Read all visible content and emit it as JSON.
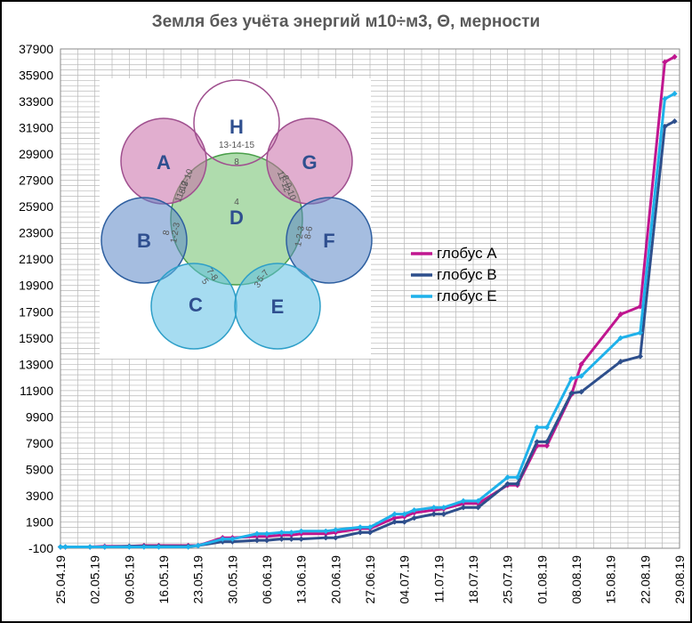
{
  "chart_data": {
    "type": "line",
    "title": "Земля без учёта энергий м10÷м3, Θ, мерности",
    "xlabel": "",
    "ylabel": "",
    "ylim": [
      -100,
      37900
    ],
    "yticks": [
      "37900",
      "35900",
      "33900",
      "31900",
      "29900",
      "27900",
      "25900",
      "23900",
      "21900",
      "19900",
      "17900",
      "15900",
      "13900",
      "11900",
      "9900",
      "7900",
      "5900",
      "3900",
      "1900",
      "-100"
    ],
    "xticks": [
      "25.04.19",
      "02.05.19",
      "09.05.19",
      "16.05.19",
      "23.05.19",
      "30.05.19",
      "06.06.19",
      "13.06.19",
      "20.06.19",
      "27.06.19",
      "04.07.19",
      "11.07.19",
      "18.07.19",
      "25.07.19",
      "01.08.19",
      "08.08.19",
      "15.08.19",
      "22.08.19",
      "29.08.19"
    ],
    "grid": true,
    "legend_position": "center-right",
    "series": [
      {
        "name": "глобус А",
        "color": "#c0168f",
        "x": [
          "25.04.19",
          "26.04.19",
          "01.05.19",
          "04.05.19",
          "09.05.19",
          "12.05.19",
          "15.05.19",
          "21.05.19",
          "23.05.19",
          "28.05.19",
          "30.05.19",
          "04.06.19",
          "06.06.19",
          "09.06.19",
          "11.06.19",
          "13.06.19",
          "18.06.19",
          "20.06.19",
          "25.06.19",
          "27.06.19",
          "02.07.19",
          "04.07.19",
          "06.07.19",
          "10.07.19",
          "12.07.19",
          "16.07.19",
          "19.07.19",
          "25.07.19",
          "27.07.19",
          "31.07.19",
          "02.08.19",
          "07.08.19",
          "09.08.19",
          "17.08.19",
          "21.08.19",
          "26.08.19",
          "28.08.19"
        ],
        "values": [
          0,
          0,
          0,
          50,
          50,
          100,
          100,
          100,
          100,
          700,
          700,
          800,
          800,
          900,
          900,
          1000,
          1000,
          1100,
          1400,
          1400,
          2200,
          2300,
          2600,
          2800,
          2900,
          3300,
          3300,
          4700,
          4700,
          7700,
          7700,
          11600,
          13900,
          17700,
          18300,
          36900,
          37300
        ]
      },
      {
        "name": "глобус В",
        "color": "#2e4f8c",
        "x": [
          "25.04.19",
          "26.04.19",
          "01.05.19",
          "04.05.19",
          "09.05.19",
          "12.05.19",
          "15.05.19",
          "21.05.19",
          "23.05.19",
          "28.05.19",
          "30.05.19",
          "04.06.19",
          "06.06.19",
          "09.06.19",
          "11.06.19",
          "13.06.19",
          "18.06.19",
          "20.06.19",
          "25.06.19",
          "27.06.19",
          "02.07.19",
          "04.07.19",
          "06.07.19",
          "10.07.19",
          "12.07.19",
          "16.07.19",
          "19.07.19",
          "25.07.19",
          "27.07.19",
          "31.07.19",
          "02.08.19",
          "07.08.19",
          "09.08.19",
          "17.08.19",
          "21.08.19",
          "26.08.19",
          "28.08.19"
        ],
        "values": [
          0,
          0,
          0,
          0,
          50,
          50,
          50,
          50,
          100,
          400,
          400,
          500,
          500,
          600,
          600,
          600,
          700,
          700,
          1100,
          1100,
          1900,
          1900,
          2200,
          2500,
          2500,
          3000,
          3000,
          4800,
          4800,
          8000,
          8000,
          11700,
          11800,
          14100,
          14500,
          32000,
          32400
        ]
      },
      {
        "name": "глобус Е",
        "color": "#1eb1ea",
        "x": [
          "25.04.19",
          "26.04.19",
          "01.05.19",
          "04.05.19",
          "09.05.19",
          "12.05.19",
          "15.05.19",
          "21.05.19",
          "23.05.19",
          "28.05.19",
          "30.05.19",
          "04.06.19",
          "06.06.19",
          "09.06.19",
          "11.06.19",
          "13.06.19",
          "18.06.19",
          "20.06.19",
          "25.06.19",
          "27.06.19",
          "02.07.19",
          "04.07.19",
          "06.07.19",
          "10.07.19",
          "12.07.19",
          "16.07.19",
          "19.07.19",
          "25.07.19",
          "27.07.19",
          "31.07.19",
          "02.08.19",
          "07.08.19",
          "09.08.19",
          "17.08.19",
          "21.08.19",
          "26.08.19",
          "28.08.19"
        ],
        "values": [
          0,
          0,
          0,
          0,
          0,
          0,
          0,
          0,
          100,
          600,
          600,
          1000,
          1000,
          1100,
          1100,
          1200,
          1200,
          1300,
          1500,
          1500,
          2500,
          2500,
          2800,
          3000,
          3000,
          3500,
          3500,
          5300,
          5300,
          9100,
          9100,
          12800,
          13000,
          15900,
          16300,
          34100,
          34500
        ]
      }
    ]
  },
  "inset": {
    "circles": [
      {
        "id": "H",
        "label": "H",
        "inner": "13-14-15",
        "num": "8",
        "color": "#ffffff",
        "stroke": "#a0508f"
      },
      {
        "id": "A",
        "label": "A",
        "inner": "11-12",
        "num": "8-9-10",
        "color": "#c86ba8",
        "stroke": "#a0508f"
      },
      {
        "id": "G",
        "label": "G",
        "inner": "8-9-10",
        "num": "11-12",
        "color": "#c86ba8",
        "stroke": "#a0508f"
      },
      {
        "id": "B",
        "label": "B",
        "inner": "1-2-3",
        "num": "8",
        "color": "#5b86c6",
        "stroke": "#2e5fa0"
      },
      {
        "id": "F",
        "label": "F",
        "inner": "1-2-3",
        "num": "8-6",
        "color": "#5b86c6",
        "stroke": "#2e5fa0"
      },
      {
        "id": "C",
        "label": "C",
        "inner": "7-8",
        "num": "5",
        "color": "#5cc0e6",
        "stroke": "#2e9fc8"
      },
      {
        "id": "E",
        "label": "E",
        "inner": "5-7",
        "num": "3",
        "color": "#5cc0e6",
        "stroke": "#2e9fc8"
      },
      {
        "id": "D",
        "label": "D",
        "inner": "4",
        "num": "",
        "color": "#6dbf6a",
        "stroke": "#4a9f4a"
      }
    ]
  }
}
